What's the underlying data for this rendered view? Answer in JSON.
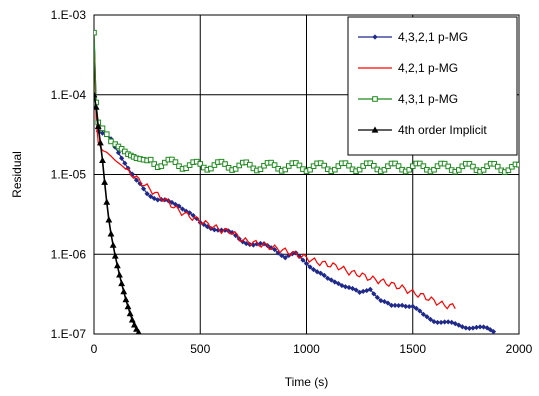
{
  "chart_data": {
    "type": "line",
    "xlabel": "Time (s)",
    "ylabel": "Residual",
    "xlim": [
      0,
      2000
    ],
    "ylim": [
      1e-07,
      0.001
    ],
    "y_scale": "log",
    "grid": true,
    "legend_position": "top-right",
    "x_ticks": [
      {
        "value": 0,
        "label": "0"
      },
      {
        "value": 500,
        "label": "500"
      },
      {
        "value": 1000,
        "label": "1000"
      },
      {
        "value": 1500,
        "label": "1500"
      },
      {
        "value": 2000,
        "label": "2000"
      }
    ],
    "y_ticks": [
      {
        "value": 0.001,
        "label": "1.E-03"
      },
      {
        "value": 0.0001,
        "label": "1.E-04"
      },
      {
        "value": 1e-05,
        "label": "1.E-05"
      },
      {
        "value": 1e-06,
        "label": "1.E-06"
      },
      {
        "value": 1e-07,
        "label": "1.E-07"
      }
    ],
    "series": [
      {
        "name": "4,3,2,1 p-MG",
        "color": "#1f2a8a",
        "marker": "diamond",
        "x": [
          0,
          10,
          20,
          40,
          60,
          80,
          100,
          130,
          160,
          200,
          250,
          300,
          350,
          400,
          450,
          500,
          550,
          600,
          650,
          700,
          750,
          800,
          850,
          900,
          950,
          1000,
          1050,
          1100,
          1150,
          1200,
          1250,
          1300,
          1350,
          1400,
          1450,
          1500,
          1550,
          1600,
          1650,
          1700,
          1750,
          1800,
          1850,
          1880
        ],
        "y": [
          0.0006,
          8e-05,
          3.5e-05,
          3.3e-05,
          3.2e-05,
          2.8e-05,
          2.2e-05,
          1.6e-05,
          1.2e-05,
          8.5e-06,
          6e-06,
          4.8e-06,
          4.5e-06,
          4.2e-06,
          3.3e-06,
          2.4e-06,
          2.2e-06,
          2e-06,
          1.8e-06,
          1.5e-06,
          1.3e-06,
          1.3e-06,
          1.2e-06,
          9e-07,
          1e-06,
          8e-07,
          6e-07,
          4.8e-07,
          4.5e-07,
          3.8e-07,
          3.2e-07,
          3.8e-07,
          2.6e-07,
          2.2e-07,
          2.4e-07,
          2.2e-07,
          1.7e-07,
          1.5e-07,
          1.4e-07,
          1.3e-07,
          1.25e-07,
          1.2e-07,
          1.15e-07,
          1.1e-07
        ]
      },
      {
        "name": "4,2,1 p-MG",
        "color": "#ff0000",
        "marker": "none",
        "x": [
          0,
          10,
          20,
          40,
          60,
          80,
          100,
          130,
          160,
          200,
          250,
          300,
          350,
          400,
          450,
          500,
          550,
          600,
          650,
          700,
          750,
          800,
          850,
          900,
          950,
          1000,
          1050,
          1100,
          1150,
          1200,
          1250,
          1300,
          1350,
          1400,
          1450,
          1500,
          1550,
          1600,
          1650,
          1700
        ],
        "y": [
          0.0006,
          5e-05,
          2.5e-05,
          2e-05,
          1.9e-05,
          1.7e-05,
          1.5e-05,
          1.3e-05,
          1.1e-05,
          9e-06,
          7e-06,
          5.5e-06,
          4.5e-06,
          3.5e-06,
          3e-06,
          2.6e-06,
          2.3e-06,
          2e-06,
          1.9e-06,
          1.5e-06,
          1.4e-06,
          1.3e-06,
          1.2e-06,
          1.1e-06,
          1e-06,
          9e-07,
          8e-07,
          7.5e-07,
          7e-07,
          6e-07,
          5.6e-07,
          5e-07,
          4.6e-07,
          4.2e-07,
          3.8e-07,
          3.3e-07,
          3e-07,
          2.6e-07,
          2.3e-07,
          2.2e-07
        ]
      },
      {
        "name": "4,3,1 p-MG",
        "color": "#1e8a1e",
        "marker": "square",
        "x": [
          0,
          10,
          20,
          40,
          60,
          80,
          100,
          130,
          160,
          200,
          250,
          300,
          350,
          400,
          450,
          500,
          600,
          700,
          800,
          900,
          1000,
          1100,
          1200,
          1300,
          1400,
          1500,
          1600,
          1700,
          1800,
          1900,
          2000
        ],
        "y": [
          0.0006,
          8e-05,
          4.5e-05,
          3.8e-05,
          3.2e-05,
          2.6e-05,
          2.4e-05,
          2.1e-05,
          1.8e-05,
          1.6e-05,
          1.5e-05,
          1.4e-05,
          1.4e-05,
          1.35e-05,
          1.3e-05,
          1.3e-05,
          1.3e-05,
          1.28e-05,
          1.27e-05,
          1.26e-05,
          1.25e-05,
          1.25e-05,
          1.25e-05,
          1.25e-05,
          1.24e-05,
          1.24e-05,
          1.24e-05,
          1.23e-05,
          1.23e-05,
          1.23e-05,
          1.2e-05
        ]
      },
      {
        "name": "4th order Implicit",
        "color": "#000000",
        "marker": "triangle",
        "x": [
          0,
          10,
          20,
          30,
          40,
          50,
          60,
          70,
          80,
          90,
          100,
          110,
          120,
          130,
          140,
          150,
          160,
          170,
          180,
          190,
          200,
          210
        ],
        "y": [
          0.0001,
          7e-05,
          4e-05,
          2.5e-05,
          1.5e-05,
          8e-06,
          4.5e-06,
          2.7e-06,
          1.8e-06,
          1.3e-06,
          9.5e-07,
          7.2e-07,
          5.5e-07,
          4.3e-07,
          3.4e-07,
          2.7e-07,
          2.2e-07,
          1.8e-07,
          1.5e-07,
          1.3e-07,
          1.15e-07,
          1.05e-07
        ]
      }
    ]
  }
}
